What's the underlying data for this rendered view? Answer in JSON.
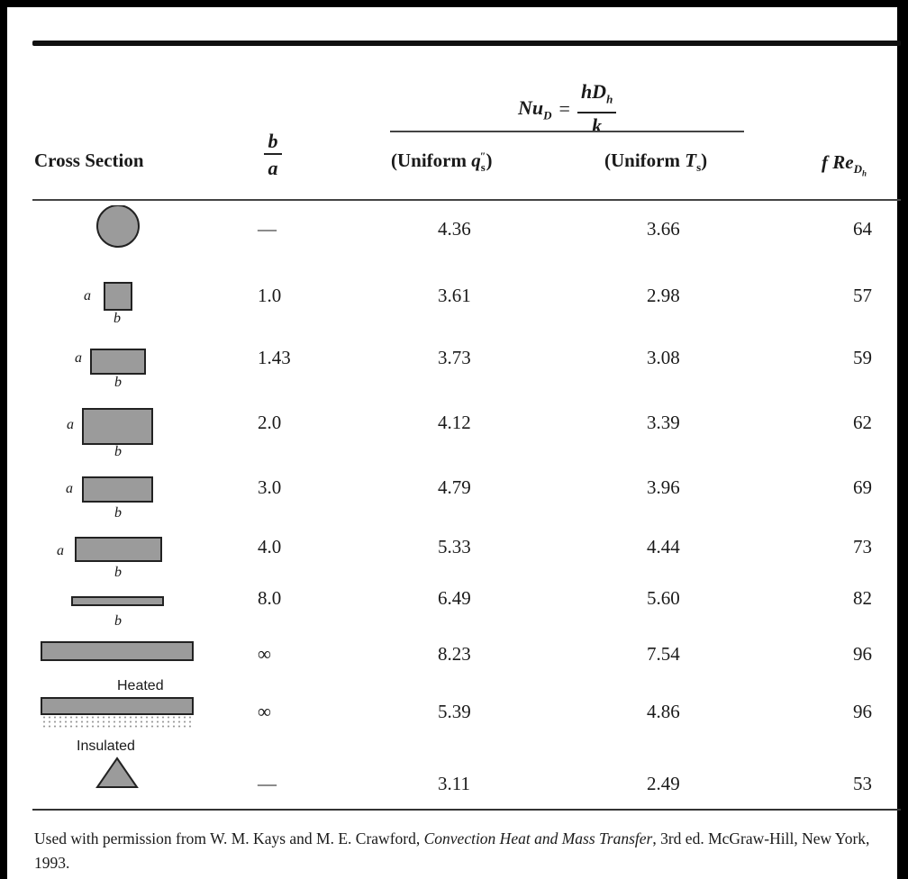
{
  "header": {
    "cross_section": "Cross Section",
    "ratio_num": "b",
    "ratio_den": "a",
    "nu_lhs": "Nu",
    "nu_lhs_sub": "D",
    "nu_num": "hD",
    "nu_num_sub": "h",
    "nu_den": "k",
    "uniform_q_pre": "(Uniform ",
    "uniform_q_sym": "q",
    "uniform_q_sub": "s",
    "uniform_q_sup": "″",
    "uniform_q_post": ")",
    "uniform_t_pre": "(Uniform ",
    "uniform_t_sym": "T",
    "uniform_t_sub": "s",
    "uniform_t_post": ")",
    "fre_f": "f",
    "fre_re": "Re",
    "fre_sub": "D",
    "fre_subsub": "h"
  },
  "rows": [
    {
      "shape": "circle-icon",
      "ratio": "—",
      "nu_q": "4.36",
      "nu_t": "3.66",
      "f_re": "64"
    },
    {
      "shape": "square-icon",
      "ratio": "1.0",
      "nu_q": "3.61",
      "nu_t": "2.98",
      "f_re": "57"
    },
    {
      "shape": "rectangle-icon",
      "ratio": "1.43",
      "nu_q": "3.73",
      "nu_t": "3.08",
      "f_re": "59"
    },
    {
      "shape": "rectangle-icon",
      "ratio": "2.0",
      "nu_q": "4.12",
      "nu_t": "3.39",
      "f_re": "62"
    },
    {
      "shape": "rectangle-icon",
      "ratio": "3.0",
      "nu_q": "4.79",
      "nu_t": "3.96",
      "f_re": "69"
    },
    {
      "shape": "rectangle-icon",
      "ratio": "4.0",
      "nu_q": "5.33",
      "nu_t": "4.44",
      "f_re": "73"
    },
    {
      "shape": "rectangle-icon",
      "ratio": "8.0",
      "nu_q": "6.49",
      "nu_t": "5.60",
      "f_re": "82"
    },
    {
      "shape": "parallel-plates-icon",
      "ratio": "∞",
      "nu_q": "8.23",
      "nu_t": "7.54",
      "f_re": "96"
    },
    {
      "shape": "heated-insulated-plates-icon",
      "ratio": "∞",
      "nu_q": "5.39",
      "nu_t": "4.86",
      "f_re": "96"
    },
    {
      "shape": "triangle-icon",
      "ratio": "—",
      "nu_q": "3.11",
      "nu_t": "2.49",
      "f_re": "53"
    }
  ],
  "shape_labels": {
    "a": "a",
    "b": "b",
    "heated": "Heated",
    "insulated": "Insulated"
  },
  "footnote": {
    "pre": "Used with permission from W. M. Kays and M. E. Crawford, ",
    "title": "Convection Heat and Mass Transfer",
    "post": ", 3rd ed. McGraw-Hill, New York, 1993."
  },
  "colors": {
    "shape_fill": "#9b9b9b",
    "shape_stroke": "#222222"
  }
}
